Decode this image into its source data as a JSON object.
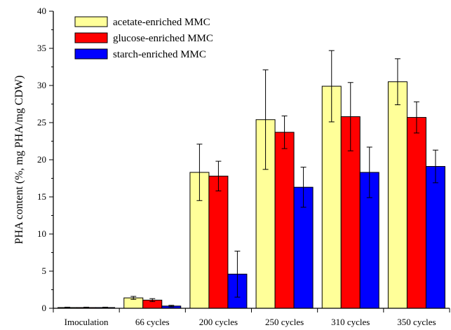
{
  "chart_data": {
    "type": "bar",
    "title": "",
    "xlabel": "",
    "ylabel": "PHA content (%, mg PHA/mg CDW)",
    "ylim": [
      0,
      40
    ],
    "yticks": [
      "0",
      "5",
      "10",
      "15",
      "20",
      "25",
      "30",
      "35",
      "40"
    ],
    "categories": [
      "Imoculation",
      "66 cycles",
      "200 cycles",
      "250 cycles",
      "310 cycles",
      "350 cycles"
    ],
    "series": [
      {
        "name": "acetate-enriched MMC",
        "color": "#ffff99",
        "values": [
          0.1,
          1.4,
          18.3,
          25.4,
          29.9,
          30.5
        ],
        "errors": [
          0.05,
          0.2,
          3.8,
          6.7,
          4.8,
          3.1
        ]
      },
      {
        "name": "glucose-enriched MMC",
        "color": "#ff0000",
        "values": [
          0.1,
          1.1,
          17.8,
          23.7,
          25.8,
          25.7
        ],
        "errors": [
          0.05,
          0.2,
          2.0,
          2.2,
          4.6,
          2.1
        ]
      },
      {
        "name": "starch-enriched MMC",
        "color": "#0000ff",
        "values": [
          0.1,
          0.3,
          4.6,
          16.3,
          18.3,
          19.1
        ],
        "errors": [
          0.05,
          0.1,
          3.1,
          2.7,
          3.4,
          2.2
        ]
      }
    ],
    "legend_position": "top-left",
    "grid": false
  }
}
